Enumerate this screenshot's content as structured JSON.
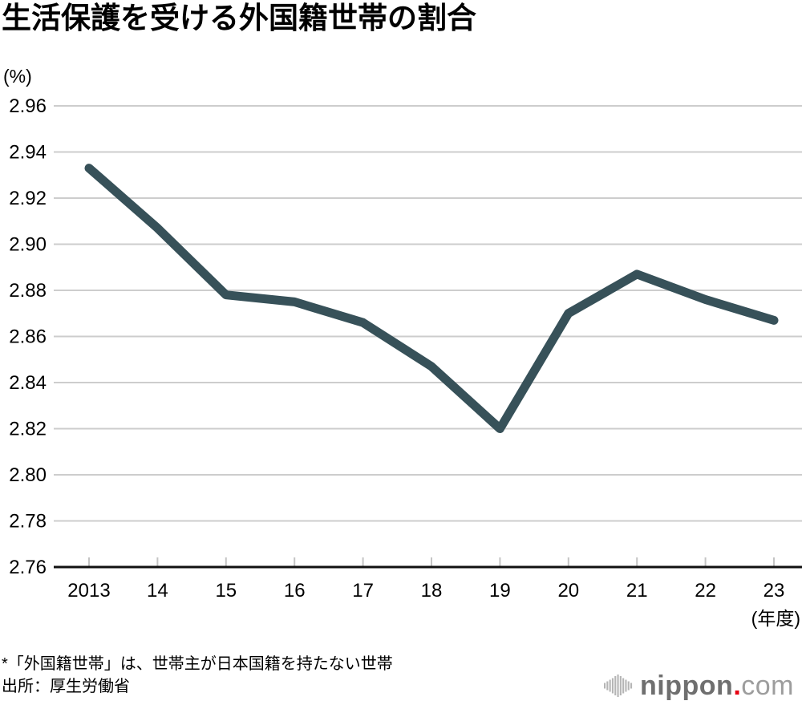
{
  "title": "生活保護を受ける外国籍世帯の割合",
  "y_unit_label": "(%)",
  "x_unit_label": "(年度)",
  "footnotes": {
    "note": "*「外国籍世帯」は、世帯主が日本国籍を持たない世帯",
    "source": "出所：厚生労働省"
  },
  "logo": {
    "name": "nippon.com",
    "text_main": "nippon",
    "text_dot": ".",
    "text_suffix": "com"
  },
  "colors": {
    "line": "#375159",
    "grid": "#cdcdcd",
    "axis": "#111111",
    "tick": "#c4c4c4",
    "text": "#000000",
    "logo_main": "#6f6f6f",
    "logo_suffix": "#9d9d9d",
    "logo_red": "#e60012",
    "logo_bars": "#b5b5b5"
  },
  "chart_data": {
    "type": "line",
    "title": "生活保護を受ける外国籍世帯の割合",
    "x": [
      "2013",
      "14",
      "15",
      "16",
      "17",
      "18",
      "19",
      "20",
      "21",
      "22",
      "23"
    ],
    "values": [
      2.933,
      2.907,
      2.878,
      2.875,
      2.866,
      2.847,
      2.82,
      2.87,
      2.887,
      2.876,
      2.867
    ],
    "series_name": "生活保護を受ける外国籍世帯の割合",
    "xlabel": "年度",
    "ylabel": "%",
    "ylim": [
      2.76,
      2.96
    ],
    "ytick_step": 0.02,
    "ytick_labels": [
      "2.96",
      "2.94",
      "2.92",
      "2.90",
      "2.88",
      "2.86",
      "2.84",
      "2.82",
      "2.80",
      "2.78",
      "2.76"
    ],
    "grid": "horizontal",
    "legend": "none"
  }
}
